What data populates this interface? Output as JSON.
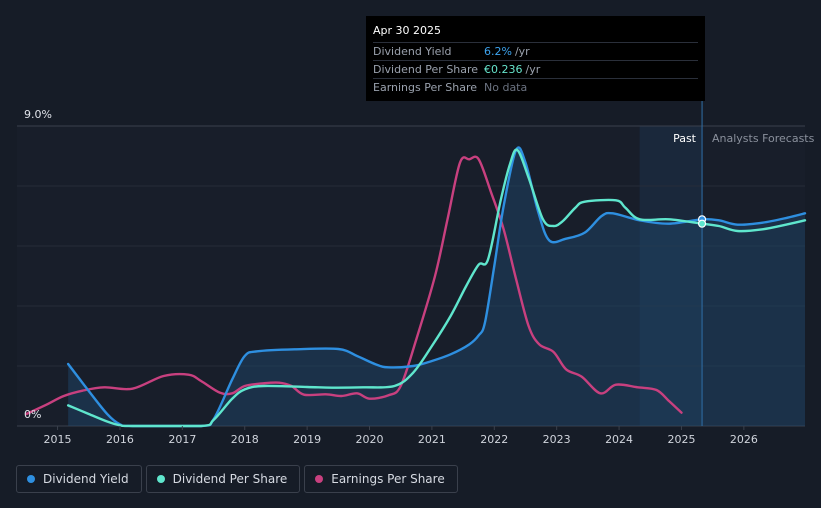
{
  "tooltip": {
    "date": "Apr 30 2025",
    "rows": [
      {
        "label": "Dividend Yield",
        "value": "6.2%",
        "unit": "/yr"
      },
      {
        "label": "Dividend Per Share",
        "value": "€0.236",
        "unit": "/yr"
      },
      {
        "label": "Earnings Per Share",
        "value": "No data",
        "unit": ""
      }
    ]
  },
  "zones": {
    "past": "Past",
    "forecast": "Analysts Forecasts"
  },
  "legend": [
    {
      "label": "Dividend Yield",
      "color": "#2e8fe0"
    },
    {
      "label": "Dividend Per Share",
      "color": "#5fe6cd"
    },
    {
      "label": "Earnings Per Share",
      "color": "#c8407f"
    }
  ],
  "chart_data": {
    "type": "line",
    "ylabel_top": "9.0%",
    "ylabel_bottom": "0%",
    "ylim": [
      0,
      9.0
    ],
    "xlim": [
      2014.35,
      2026.98
    ],
    "x_ticks": [
      "2015",
      "2016",
      "2017",
      "2018",
      "2019",
      "2020",
      "2021",
      "2022",
      "2023",
      "2024",
      "2025",
      "2026"
    ],
    "past_start": 2024.33,
    "divider": 2025.33,
    "series": [
      {
        "name": "Dividend Yield",
        "color": "#2e8fe0",
        "points": [
          [
            2015.17,
            1.86
          ],
          [
            2015.5,
            1.05
          ],
          [
            2015.8,
            0.35
          ],
          [
            2016.0,
            0.05
          ],
          [
            2016.2,
            0
          ],
          [
            2017.3,
            0
          ],
          [
            2017.5,
            0.2
          ],
          [
            2017.8,
            1.4
          ],
          [
            2018.0,
            2.1
          ],
          [
            2018.2,
            2.24
          ],
          [
            2018.8,
            2.3
          ],
          [
            2019.5,
            2.31
          ],
          [
            2019.8,
            2.1
          ],
          [
            2020.1,
            1.85
          ],
          [
            2020.3,
            1.76
          ],
          [
            2020.7,
            1.8
          ],
          [
            2021.0,
            1.95
          ],
          [
            2021.3,
            2.15
          ],
          [
            2021.6,
            2.45
          ],
          [
            2021.75,
            2.72
          ],
          [
            2021.85,
            3.1
          ],
          [
            2022.0,
            4.8
          ],
          [
            2022.15,
            6.6
          ],
          [
            2022.35,
            8.28
          ],
          [
            2022.5,
            7.9
          ],
          [
            2022.7,
            6.45
          ],
          [
            2022.88,
            5.57
          ],
          [
            2023.15,
            5.62
          ],
          [
            2023.45,
            5.8
          ],
          [
            2023.72,
            6.3
          ],
          [
            2023.9,
            6.38
          ],
          [
            2024.33,
            6.17
          ],
          [
            2024.8,
            6.07
          ],
          [
            2025.33,
            6.2
          ],
          [
            2025.6,
            6.17
          ],
          [
            2025.9,
            6.04
          ],
          [
            2026.3,
            6.1
          ],
          [
            2026.7,
            6.25
          ],
          [
            2026.98,
            6.38
          ]
        ]
      },
      {
        "name": "Dividend Per Share",
        "color": "#5fe6cd",
        "points": [
          [
            2015.17,
            0.62
          ],
          [
            2015.5,
            0.36
          ],
          [
            2015.8,
            0.13
          ],
          [
            2016.0,
            0.02
          ],
          [
            2016.2,
            0
          ],
          [
            2017.3,
            0
          ],
          [
            2017.5,
            0.18
          ],
          [
            2017.8,
            0.82
          ],
          [
            2018.0,
            1.1
          ],
          [
            2018.3,
            1.2
          ],
          [
            2019.0,
            1.17
          ],
          [
            2019.4,
            1.15
          ],
          [
            2019.9,
            1.16
          ],
          [
            2020.4,
            1.2
          ],
          [
            2020.7,
            1.6
          ],
          [
            2021.0,
            2.4
          ],
          [
            2021.3,
            3.3
          ],
          [
            2021.55,
            4.2
          ],
          [
            2021.75,
            4.84
          ],
          [
            2021.9,
            5.0
          ],
          [
            2022.1,
            6.75
          ],
          [
            2022.25,
            7.85
          ],
          [
            2022.37,
            8.28
          ],
          [
            2022.55,
            7.45
          ],
          [
            2022.78,
            6.2
          ],
          [
            2022.95,
            6.0
          ],
          [
            2023.1,
            6.15
          ],
          [
            2023.3,
            6.55
          ],
          [
            2023.45,
            6.73
          ],
          [
            2023.95,
            6.77
          ],
          [
            2024.1,
            6.55
          ],
          [
            2024.33,
            6.2
          ],
          [
            2024.8,
            6.2
          ],
          [
            2025.33,
            6.07
          ],
          [
            2025.6,
            6.0
          ],
          [
            2025.9,
            5.85
          ],
          [
            2026.3,
            5.9
          ],
          [
            2026.7,
            6.05
          ],
          [
            2026.98,
            6.17
          ]
        ]
      },
      {
        "name": "Earnings Per Share",
        "color": "#c8407f",
        "points": [
          [
            2014.5,
            0.36
          ],
          [
            2014.8,
            0.62
          ],
          [
            2015.1,
            0.9
          ],
          [
            2015.4,
            1.06
          ],
          [
            2015.75,
            1.16
          ],
          [
            2016.2,
            1.12
          ],
          [
            2016.7,
            1.5
          ],
          [
            2017.1,
            1.54
          ],
          [
            2017.3,
            1.35
          ],
          [
            2017.6,
            1.0
          ],
          [
            2017.8,
            0.98
          ],
          [
            2018.0,
            1.2
          ],
          [
            2018.3,
            1.28
          ],
          [
            2018.55,
            1.3
          ],
          [
            2018.75,
            1.2
          ],
          [
            2018.95,
            0.94
          ],
          [
            2019.3,
            0.95
          ],
          [
            2019.55,
            0.9
          ],
          [
            2019.8,
            0.98
          ],
          [
            2020.0,
            0.82
          ],
          [
            2020.3,
            0.92
          ],
          [
            2020.5,
            1.2
          ],
          [
            2020.75,
            2.6
          ],
          [
            2021.05,
            4.5
          ],
          [
            2021.25,
            6.2
          ],
          [
            2021.45,
            7.9
          ],
          [
            2021.6,
            8.0
          ],
          [
            2021.75,
            8.0
          ],
          [
            2021.95,
            7.0
          ],
          [
            2022.15,
            5.9
          ],
          [
            2022.35,
            4.4
          ],
          [
            2022.55,
            3.0
          ],
          [
            2022.72,
            2.45
          ],
          [
            2022.95,
            2.22
          ],
          [
            2023.15,
            1.7
          ],
          [
            2023.4,
            1.48
          ],
          [
            2023.7,
            0.98
          ],
          [
            2023.95,
            1.24
          ],
          [
            2024.3,
            1.16
          ],
          [
            2024.6,
            1.08
          ],
          [
            2024.8,
            0.75
          ],
          [
            2025.0,
            0.4
          ]
        ]
      }
    ]
  }
}
